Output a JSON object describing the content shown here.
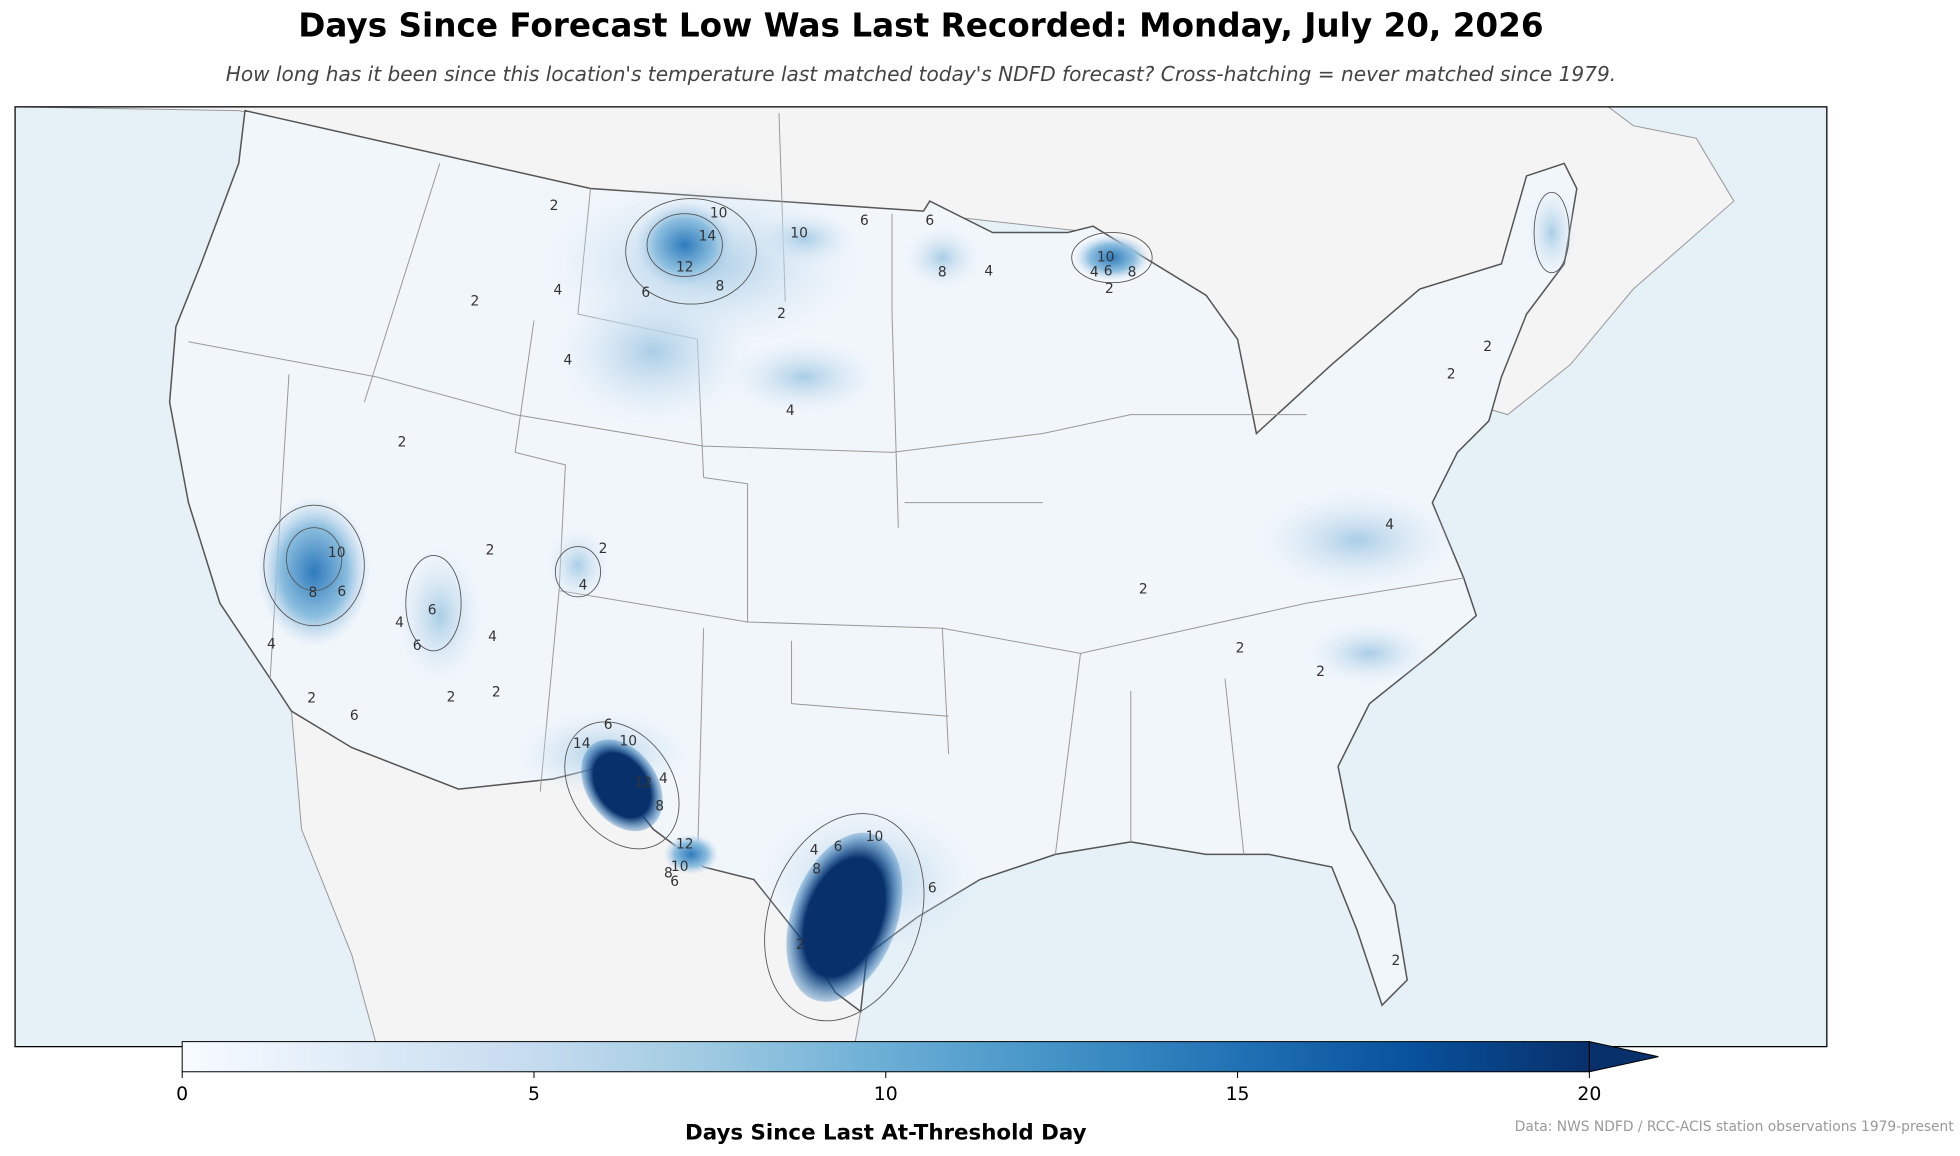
{
  "header": {
    "title": "Days Since Forecast Low Was Last Recorded: Monday, July 20, 2026",
    "subtitle": "How long has it been since this location's temperature last matched today's NDFD forecast? Cross-hatching = never matched since 1979."
  },
  "colorbar": {
    "label": "Days Since Last At-Threshold Day",
    "lim": [
      0,
      20
    ],
    "ticks": [
      0,
      5,
      10,
      15,
      20
    ],
    "extend": "max",
    "colors": [
      "#f7fbff",
      "#deebf7",
      "#c6dbef",
      "#9ecae1",
      "#6baed6",
      "#4292c6",
      "#2171b5",
      "#08519c",
      "#08306b"
    ]
  },
  "contour_labels": [
    10,
    6,
    6,
    10,
    14,
    12,
    8,
    6,
    8,
    4,
    2,
    2,
    2,
    4,
    4,
    4,
    10,
    6,
    8,
    4,
    2,
    2,
    2,
    2,
    10,
    8,
    6,
    4,
    2,
    6,
    2,
    2,
    4,
    6,
    4,
    6,
    4,
    2,
    2,
    6,
    10,
    14,
    4,
    8,
    12,
    12,
    10,
    8,
    6,
    10,
    4,
    6,
    8,
    6,
    2,
    4,
    2,
    2,
    2,
    2
  ],
  "source": "Data: NWS NDFD / RCC-ACIS station observations 1979-present"
}
